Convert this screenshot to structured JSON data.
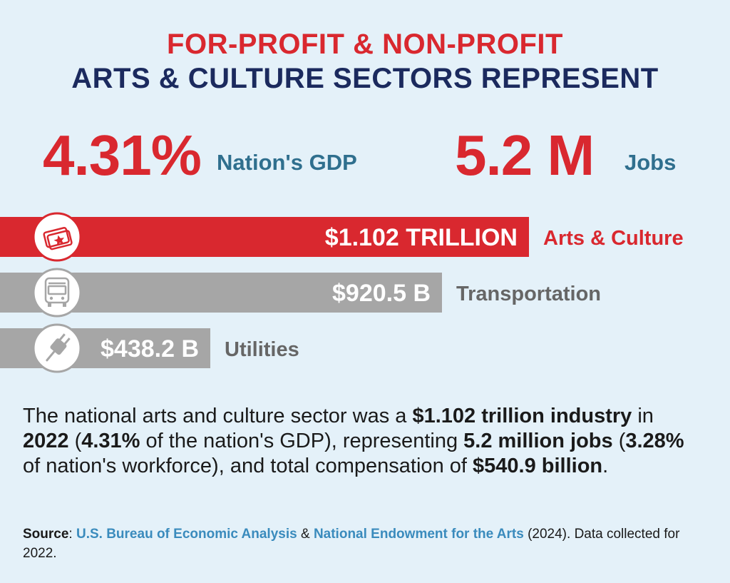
{
  "header": {
    "line1": "FOR-PROFIT & NON-PROFIT",
    "line2": "ARTS & CULTURE SECTORS REPRESENT"
  },
  "stats": [
    {
      "value": "4.31%",
      "label": "Nation's GDP"
    },
    {
      "value": "5.2 M",
      "label": "Jobs"
    }
  ],
  "colors": {
    "background": "#e4f1f9",
    "red": "#d9282f",
    "navy": "#1b2a5e",
    "teal": "#2f6f8e",
    "gray_bar": "#a6a6a6",
    "gray_label": "#666666",
    "link": "#3a8bbd"
  },
  "chart_data": {
    "type": "bar",
    "orientation": "horizontal",
    "categories": [
      "Arts & Culture",
      "Transportation",
      "Utilities"
    ],
    "values": [
      1102,
      920.5,
      438.2
    ],
    "units": "billions USD",
    "value_labels": [
      "$1.102 TRILLION",
      "$920.5 B",
      "$438.2 B"
    ],
    "icons": [
      "ticket-icon",
      "bus-icon",
      "plug-icon"
    ],
    "highlight": "Arts & Culture"
  },
  "description": {
    "t1": "The national arts and culture sector was a ",
    "b1": "$1.102 trillion industry",
    "t2": " in ",
    "b2": "2022",
    "t3": " (",
    "b3": "4.31%",
    "t4": " of the nation's GDP),  representing ",
    "b4": "5.2 million jobs",
    "t5": " (",
    "b5": "3.28%",
    "t6": " of nation's workforce), and total compensation of ",
    "b6": "$540.9 billion",
    "t7": "."
  },
  "source": {
    "label": "Source",
    "sep": ": ",
    "link1": "U.S. Bureau of Economic Analysis",
    "amp": " & ",
    "link2": "National Endowment for the Arts",
    "tail": " (2024). Data collected for 2022."
  }
}
